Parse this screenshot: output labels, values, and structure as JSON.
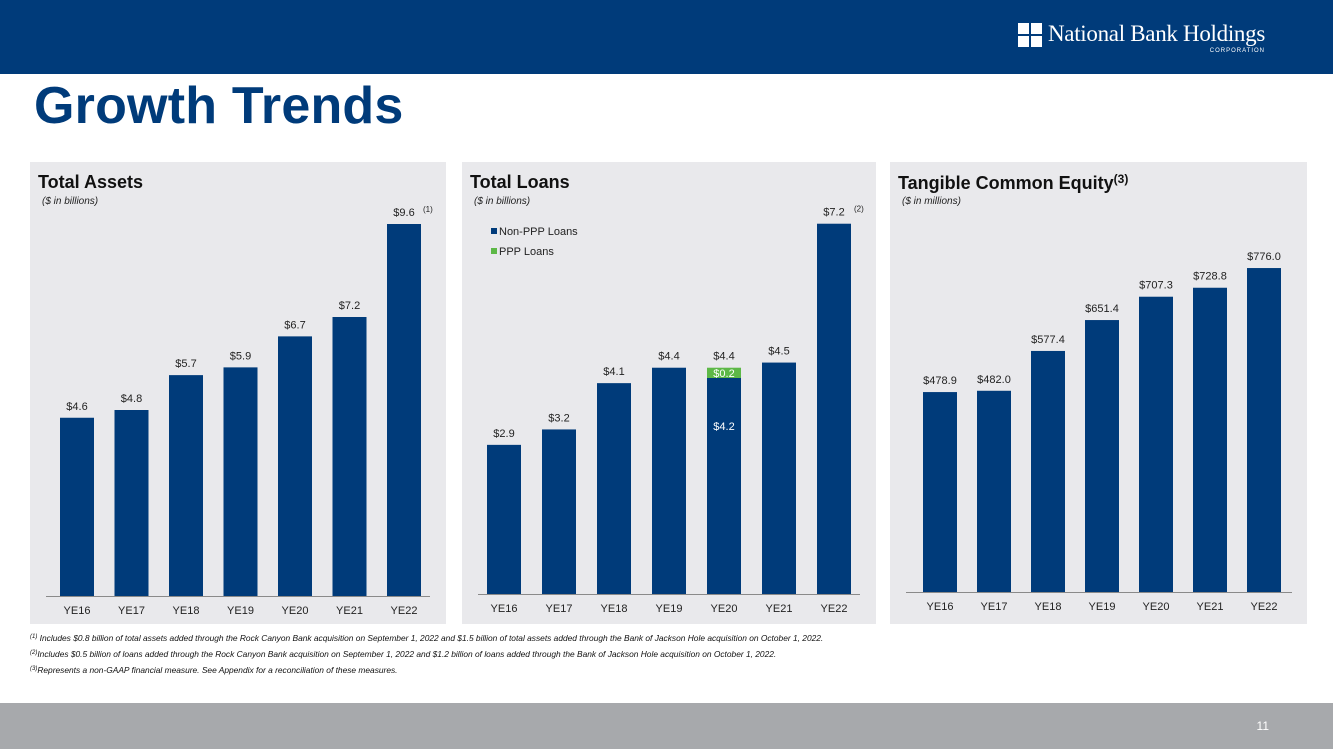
{
  "header": {
    "brand_name": "National Bank Holdings",
    "brand_sub": "CORPORATION"
  },
  "page": {
    "title": "Growth Trends",
    "number": "11"
  },
  "colors": {
    "navy": "#003b7a",
    "green": "#5db847",
    "panel": "#e9e9ec"
  },
  "chart_data": [
    {
      "type": "bar",
      "title": "Total Assets",
      "unit_label": "($ in billions)",
      "categories": [
        "YE16",
        "YE17",
        "YE18",
        "YE19",
        "YE20",
        "YE21",
        "YE22"
      ],
      "values": [
        4.6,
        4.8,
        5.7,
        5.9,
        6.7,
        7.2,
        9.6
      ],
      "labels": [
        "$4.6",
        "$4.8",
        "$5.7",
        "$5.9",
        "$6.7",
        "$7.2",
        "$9.6"
      ],
      "annotations": [
        {
          "category": "YE22",
          "text": "(1)"
        }
      ],
      "ylim": [
        0,
        11.2
      ],
      "xlabel": "",
      "ylabel": "",
      "grid": false
    },
    {
      "type": "bar",
      "stacked": true,
      "title": "Total Loans",
      "unit_label": "($ in billions)",
      "categories": [
        "YE16",
        "YE17",
        "YE18",
        "YE19",
        "YE20",
        "YE21",
        "YE22"
      ],
      "series": [
        {
          "name": "Non-PPP Loans",
          "color": "#003b7a",
          "values": [
            2.9,
            3.2,
            4.1,
            4.4,
            4.2,
            4.5,
            7.2
          ]
        },
        {
          "name": "PPP Loans",
          "color": "#5db847",
          "values": [
            0,
            0,
            0,
            0,
            0.2,
            0,
            0
          ]
        }
      ],
      "total_labels": [
        "$2.9",
        "$3.2",
        "$4.1",
        "$4.4",
        "$4.4",
        "$4.5",
        "$7.2"
      ],
      "segment_labels": [
        {
          "category": "YE20",
          "series": "PPP Loans",
          "text": "$0.2"
        },
        {
          "category": "YE20",
          "series": "Non-PPP Loans",
          "text": "$4.2"
        }
      ],
      "annotations": [
        {
          "category": "YE22",
          "text": "(2)"
        }
      ],
      "legend_position": "top-left",
      "ylim": [
        0,
        8.4
      ],
      "xlabel": "",
      "ylabel": "",
      "grid": false
    },
    {
      "type": "bar",
      "title": "Tangible Common Equity",
      "title_sup": "(3)",
      "unit_label": "($ in millions)",
      "categories": [
        "YE16",
        "YE17",
        "YE18",
        "YE19",
        "YE20",
        "YE21",
        "YE22"
      ],
      "values": [
        478.9,
        482.0,
        577.4,
        651.4,
        707.3,
        728.8,
        776.0
      ],
      "labels": [
        "$478.9",
        "$482.0",
        "$577.4",
        "$651.4",
        "$707.3",
        "$728.8",
        "$776.0"
      ],
      "ylim": [
        0,
        1030
      ],
      "xlabel": "",
      "ylabel": "",
      "grid": false
    }
  ],
  "footnotes": [
    {
      "mark": "(1)",
      "text": " Includes $0.8 billion of total assets added through the Rock Canyon Bank acquisition on September 1, 2022 and $1.5 billion of total assets added through the Bank of Jackson Hole acquisition on October 1, 2022."
    },
    {
      "mark": "(2)",
      "text": "Includes $0.5 billion of loans added through the Rock Canyon Bank acquisition on September 1, 2022 and $1.2 billion of loans added through the Bank of Jackson Hole acquisition on October 1, 2022."
    },
    {
      "mark": "(3)",
      "text": "Represents a non-GAAP financial measure.  See Appendix for a reconciliation of these measures."
    }
  ]
}
